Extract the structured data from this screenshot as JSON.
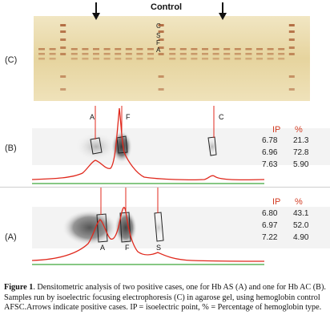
{
  "figure": {
    "panel_c": {
      "label": "(C)",
      "control_label": "Control",
      "band_letters": [
        "C",
        "S",
        "F",
        "A"
      ]
    },
    "panel_b": {
      "label": "(B)",
      "peak_labels": [
        "A",
        "F",
        "C"
      ],
      "table": {
        "col1_header": "IP",
        "col2_header": "%",
        "rows": [
          {
            "ip": "6.78",
            "pct": "21.3"
          },
          {
            "ip": "6.96",
            "pct": "72.8"
          },
          {
            "ip": "7.63",
            "pct": "5.90"
          }
        ]
      }
    },
    "panel_a": {
      "label": "(A)",
      "peak_labels": [
        "A",
        "F",
        "S"
      ],
      "table": {
        "col1_header": "IP",
        "col2_header": "%",
        "rows": [
          {
            "ip": "6.80",
            "pct": "43.1"
          },
          {
            "ip": "6.97",
            "pct": "52.0"
          },
          {
            "ip": "7.22",
            "pct": "4.90"
          }
        ]
      }
    },
    "caption": {
      "lead": "Figure 1",
      "text": ". Densitometric analysis of two positive cases, one for Hb AS (A) and one for Hb AC (B). Samples run by isoelectric focusing electrophoresis (C) in agarose gel, using hemoglobin control AFSC.Arrows indicate positive cases. IP = isoelectric point, % = Percentage of hemoglobin type."
    },
    "colors": {
      "trace": "#e0281c",
      "baseline": "#3fa83a",
      "gel": "#e4d39d",
      "band": "#a0481e",
      "table_header": "#d23b22"
    }
  }
}
